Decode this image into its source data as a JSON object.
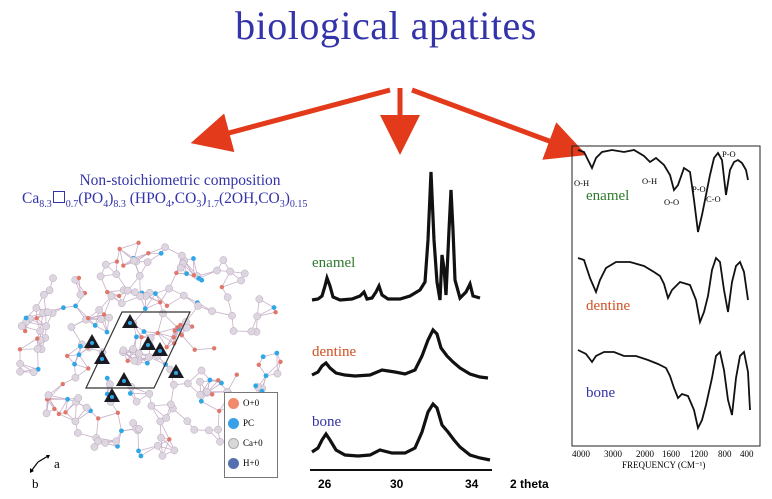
{
  "title": "biological apatites",
  "composition": {
    "heading": "Non-stoichiometric composition",
    "ca": "Ca",
    "ca_sub": "8.3",
    "vac_sub": "0.7",
    "po4": "(PO",
    "po4_sub": "4",
    "po4_close": ")",
    "po4_sub2": "8.3",
    "hpo4": " (HPO",
    "hpo4_sub": "4",
    "hpo4_rest": ",CO",
    "hpo4_sub2": "3",
    "hpo4_close": ")",
    "hpo4_sub3": "1.7",
    "oh": "(2OH,CO",
    "oh_sub": "3",
    "oh_close": ")",
    "oh_sub2": "0.15"
  },
  "structure": {
    "axis_a": "a",
    "axis_b": "b",
    "legend": [
      {
        "label": "O+0",
        "color": "#f08a6a"
      },
      {
        "label": "PC",
        "color": "#3aa0e8"
      },
      {
        "label": "Ca+0",
        "color": "#d8d8d8"
      },
      {
        "label": "H+0",
        "color": "#5570b0"
      }
    ]
  },
  "xrd": {
    "labels": {
      "enamel": "enamel",
      "dentine": "dentine",
      "bone": "bone"
    },
    "ticks": [
      "26",
      "30",
      "34"
    ],
    "axis_label": "2 theta"
  },
  "ir": {
    "labels": {
      "enamel": "enamel",
      "dentine": "dentine",
      "bone": "bone"
    },
    "peaks": {
      "oh1": "O-H",
      "oh2": "O-H",
      "oo": "O-O",
      "po1": "P-O",
      "co": "C-O",
      "po2": "P-O"
    },
    "ticks": [
      "4000",
      "3000",
      "2000",
      "1600",
      "1200",
      "800",
      "400"
    ],
    "axis_label": "FREQUENCY (CM⁻¹)"
  },
  "colors": {
    "title": "#3333aa",
    "arrow": "#e23a1a",
    "enamel": "#2e7a2e",
    "dentine": "#d05020",
    "bone": "#3333aa"
  }
}
